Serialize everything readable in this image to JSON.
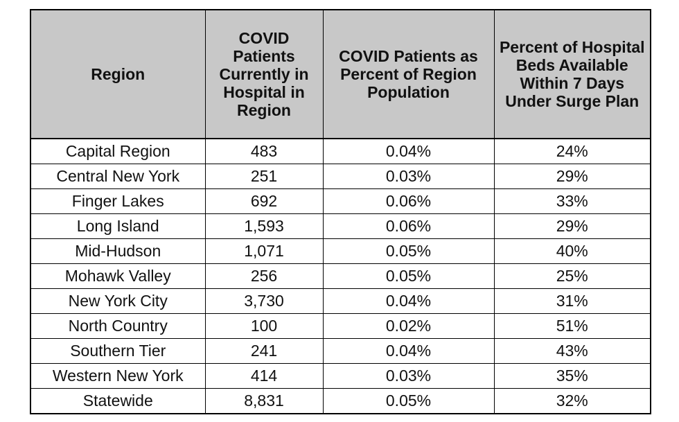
{
  "chart_data": {
    "type": "table",
    "columns": [
      "Region",
      "COVID Patients Currently in Hospital in Region",
      "COVID Patients as Percent of Region Population",
      "Percent of Hospital Beds Available Within 7 Days Under Surge Plan"
    ],
    "rows": [
      [
        "Capital Region",
        "483",
        "0.04%",
        "24%"
      ],
      [
        "Central New York",
        "251",
        "0.03%",
        "29%"
      ],
      [
        "Finger Lakes",
        "692",
        "0.06%",
        "33%"
      ],
      [
        "Long Island",
        "1,593",
        "0.06%",
        "29%"
      ],
      [
        "Mid-Hudson",
        "1,071",
        "0.05%",
        "40%"
      ],
      [
        "Mohawk Valley",
        "256",
        "0.05%",
        "25%"
      ],
      [
        "New York City",
        "3,730",
        "0.04%",
        "31%"
      ],
      [
        "North Country",
        "100",
        "0.02%",
        "51%"
      ],
      [
        "Southern Tier",
        "241",
        "0.04%",
        "43%"
      ],
      [
        "Western New York",
        "414",
        "0.03%",
        "35%"
      ],
      [
        "Statewide",
        "8,831",
        "0.05%",
        "32%"
      ]
    ]
  },
  "colors": {
    "header_background": "#c8c8c8",
    "border": "#000000",
    "text": "#111111"
  }
}
